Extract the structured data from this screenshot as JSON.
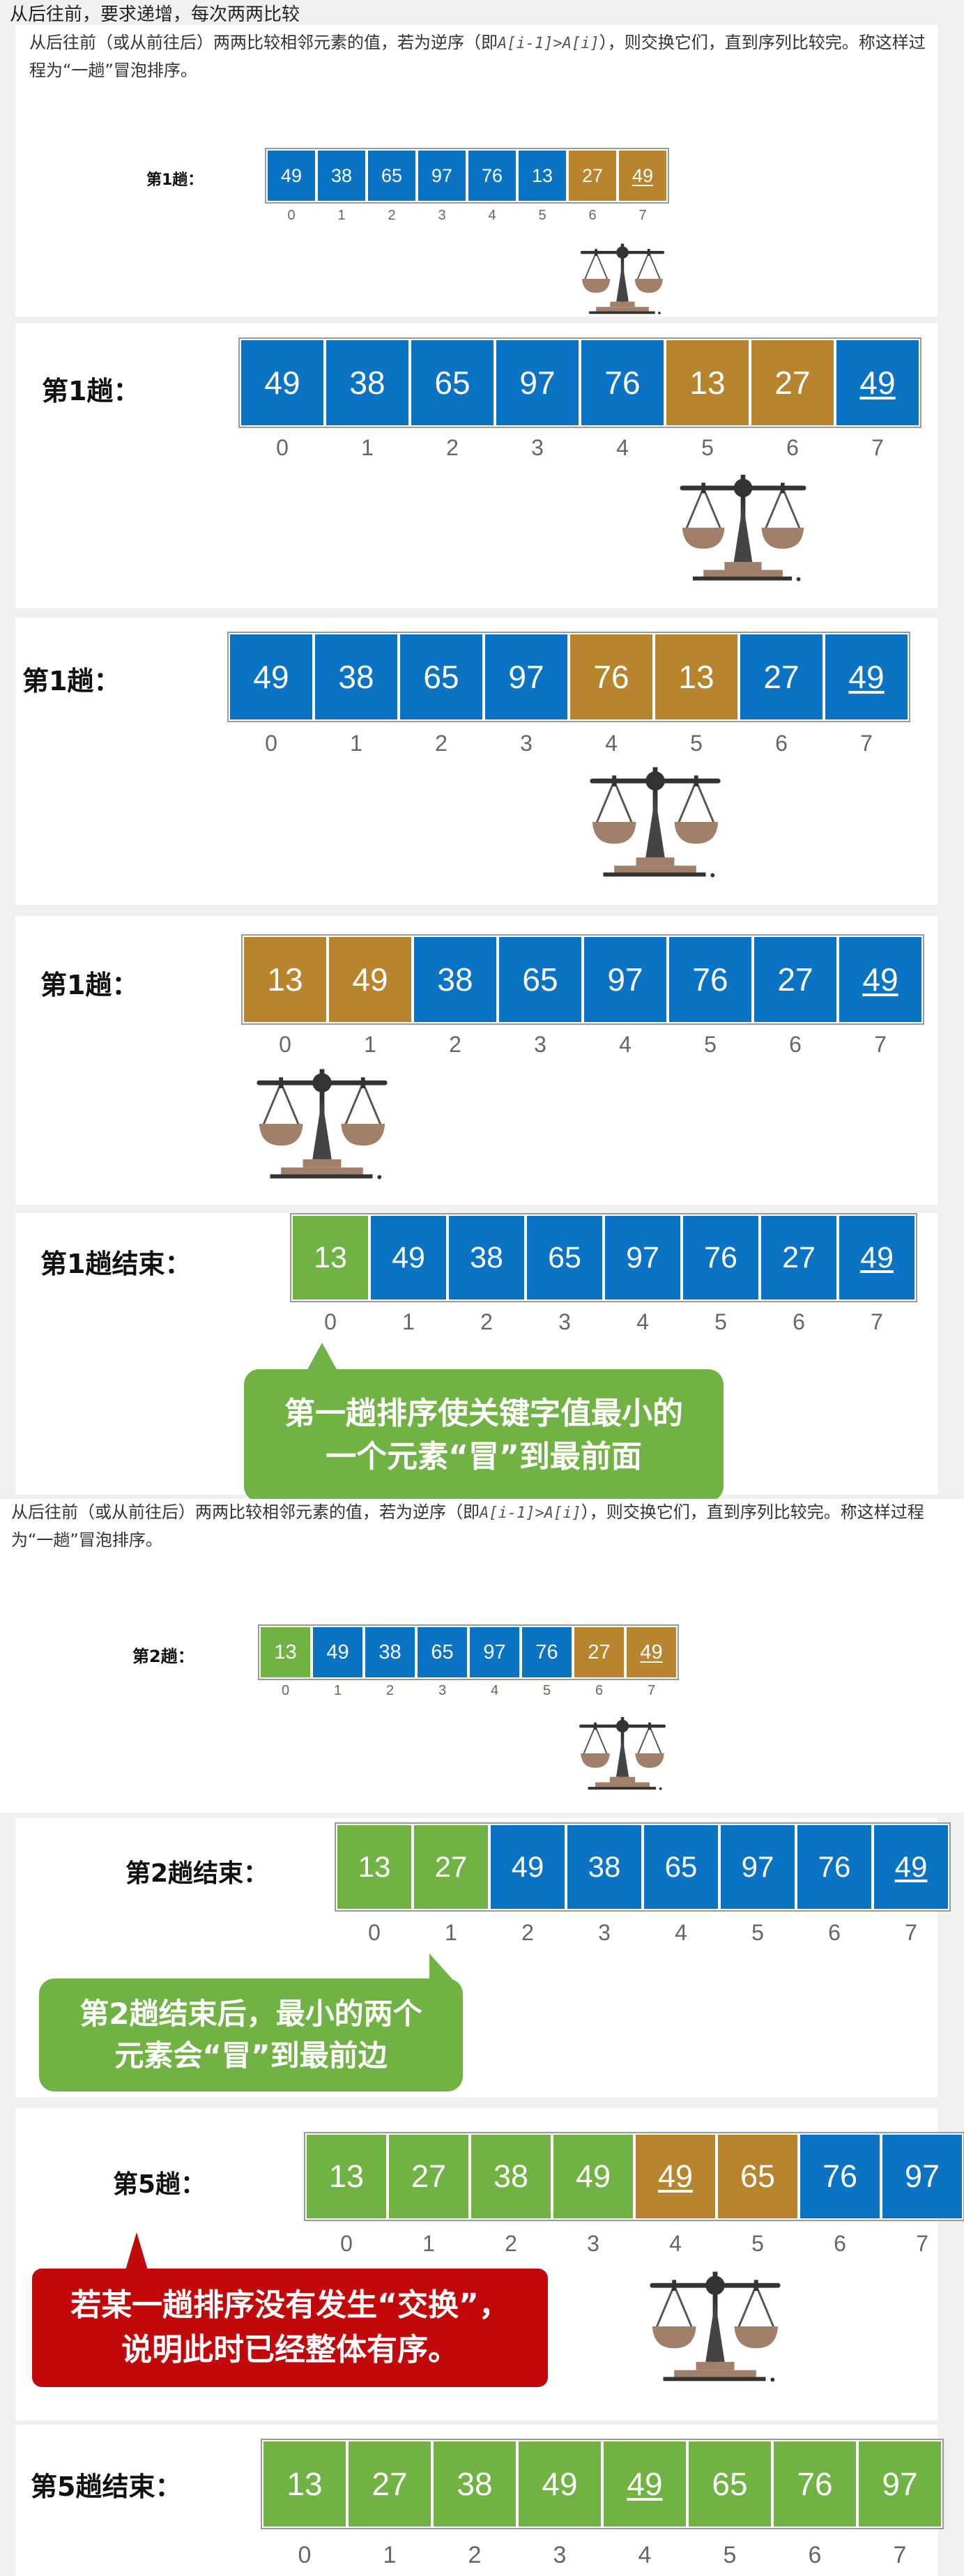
{
  "header_text": "从后往前，要求递增，每次两两比较",
  "intro": {
    "prefix": "从后往前（或从前往后）两两比较相邻元素的值，若为逆序（即",
    "code": "A[i-1]>A[i]",
    "suffix": "），则交换它们，直到序列比较完。称这样过程为“一趟”冒泡排序。"
  },
  "colors": {
    "blue": "#0b73c3",
    "orange": "#b8842e",
    "green": "#71b244",
    "bubble_green": "#71b244",
    "bubble_red": "#c1080b"
  },
  "panels": [
    {
      "label": "第1趟：",
      "values": [
        "49",
        "38",
        "65",
        "97",
        "76",
        "13",
        "27",
        "49"
      ],
      "colors": [
        "b",
        "b",
        "b",
        "b",
        "b",
        "b",
        "o",
        "o"
      ],
      "underline": [
        7
      ],
      "indices": [
        "0",
        "1",
        "2",
        "3",
        "4",
        "5",
        "6",
        "7"
      ]
    },
    {
      "label": "第1趟：",
      "values": [
        "49",
        "38",
        "65",
        "97",
        "76",
        "13",
        "27",
        "49"
      ],
      "colors": [
        "b",
        "b",
        "b",
        "b",
        "b",
        "o",
        "o",
        "b"
      ],
      "underline": [
        7
      ],
      "indices": [
        "0",
        "1",
        "2",
        "3",
        "4",
        "5",
        "6",
        "7"
      ]
    },
    {
      "label": "第1趟：",
      "values": [
        "49",
        "38",
        "65",
        "97",
        "76",
        "13",
        "27",
        "49"
      ],
      "colors": [
        "b",
        "b",
        "b",
        "b",
        "o",
        "o",
        "b",
        "b"
      ],
      "underline": [
        7
      ],
      "indices": [
        "0",
        "1",
        "2",
        "3",
        "4",
        "5",
        "6",
        "7"
      ]
    },
    {
      "label": "第1趟：",
      "values": [
        "13",
        "49",
        "38",
        "65",
        "97",
        "76",
        "27",
        "49"
      ],
      "colors": [
        "o",
        "o",
        "b",
        "b",
        "b",
        "b",
        "b",
        "b"
      ],
      "underline": [
        7
      ],
      "indices": [
        "0",
        "1",
        "2",
        "3",
        "4",
        "5",
        "6",
        "7"
      ]
    },
    {
      "label": "第1趟结束：",
      "values": [
        "13",
        "49",
        "38",
        "65",
        "97",
        "76",
        "27",
        "49"
      ],
      "colors": [
        "g",
        "b",
        "b",
        "b",
        "b",
        "b",
        "b",
        "b"
      ],
      "underline": [
        7
      ],
      "indices": [
        "0",
        "1",
        "2",
        "3",
        "4",
        "5",
        "6",
        "7"
      ],
      "bubble": "第一趟排序使关键字值最小的\n一个元素“冒”到最前面"
    },
    {
      "label": "第2趟：",
      "values": [
        "13",
        "49",
        "38",
        "65",
        "97",
        "76",
        "27",
        "49"
      ],
      "colors": [
        "g",
        "b",
        "b",
        "b",
        "b",
        "b",
        "o",
        "o"
      ],
      "underline": [
        7
      ],
      "indices": [
        "0",
        "1",
        "2",
        "3",
        "4",
        "5",
        "6",
        "7"
      ]
    },
    {
      "label": "第2趟结束：",
      "values": [
        "13",
        "27",
        "49",
        "38",
        "65",
        "97",
        "76",
        "49"
      ],
      "colors": [
        "g",
        "g",
        "b",
        "b",
        "b",
        "b",
        "b",
        "b"
      ],
      "underline": [
        7
      ],
      "indices": [
        "0",
        "1",
        "2",
        "3",
        "4",
        "5",
        "6",
        "7"
      ],
      "bubble": "第2趟结束后，最小的两个\n元素会“冒”到最前边"
    },
    {
      "label": "第5趟：",
      "values": [
        "13",
        "27",
        "38",
        "49",
        "49",
        "65",
        "76",
        "97"
      ],
      "colors": [
        "g",
        "g",
        "g",
        "g",
        "o",
        "o",
        "b",
        "b"
      ],
      "underline": [
        4
      ],
      "indices": [
        "0",
        "1",
        "2",
        "3",
        "4",
        "5",
        "6",
        "7"
      ],
      "bubble": "若某一趟排序没有发生“交换”，\n说明此时已经整体有序。"
    },
    {
      "label": "第5趟结束：",
      "values": [
        "13",
        "27",
        "38",
        "49",
        "49",
        "65",
        "76",
        "97"
      ],
      "colors": [
        "g",
        "g",
        "g",
        "g",
        "g",
        "g",
        "g",
        "g"
      ],
      "underline": [
        4
      ],
      "indices": [
        "0",
        "1",
        "2",
        "3",
        "4",
        "5",
        "6",
        "7"
      ]
    }
  ]
}
